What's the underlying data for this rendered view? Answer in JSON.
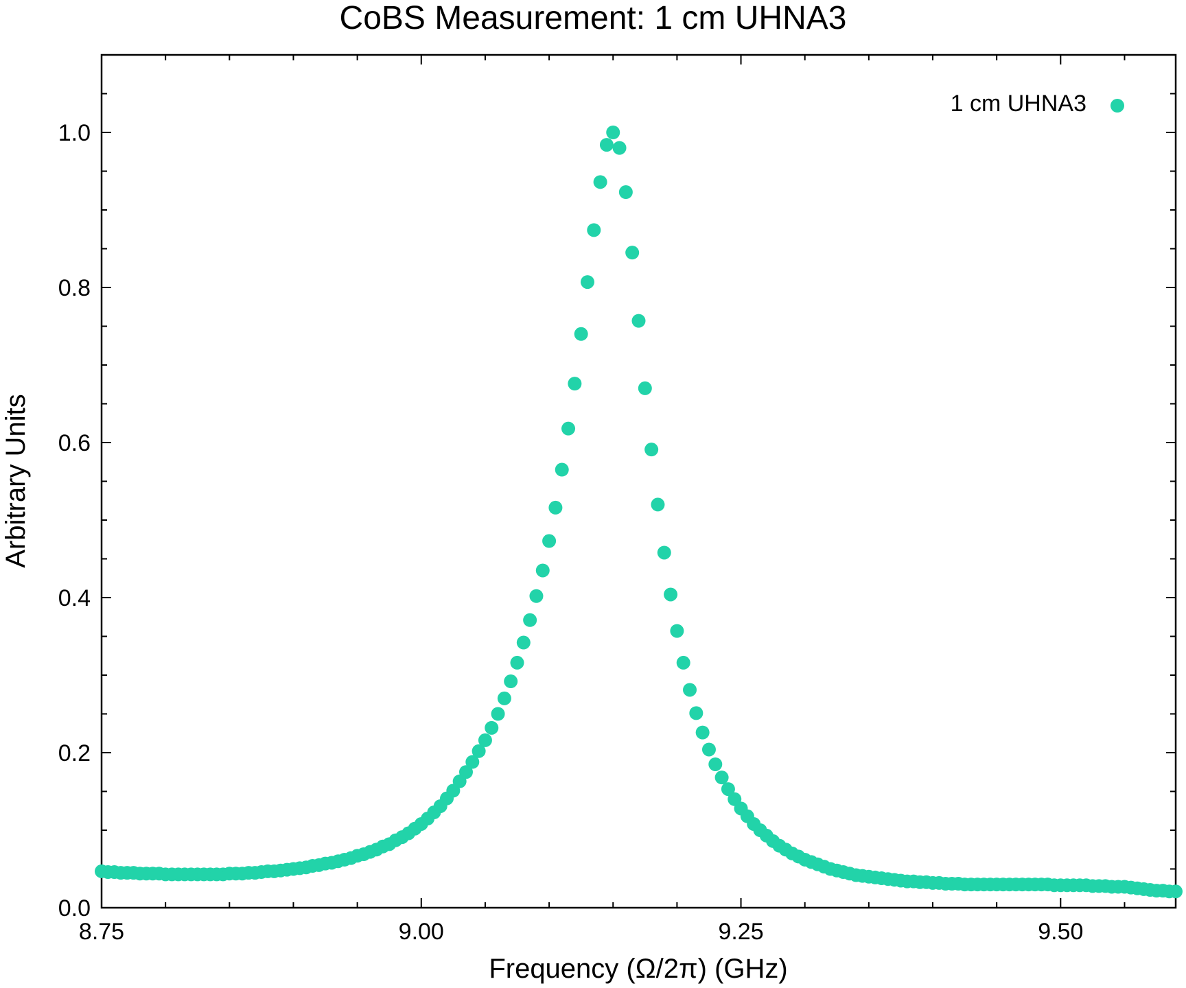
{
  "chart_data": {
    "type": "scatter",
    "title": "CoBS Measurement: 1 cm UHNA3",
    "xlabel": "Frequency (Ω/2π) (GHz)",
    "ylabel": "Arbitrary Units",
    "xlim": [
      8.75,
      9.59
    ],
    "ylim": [
      0.0,
      1.1
    ],
    "x_ticks": [
      "8.75",
      "9.00",
      "9.25",
      "9.50"
    ],
    "y_ticks": [
      "0.0",
      "0.2",
      "0.4",
      "0.6",
      "0.8",
      "1.0"
    ],
    "grid": false,
    "legend_position": "top-right",
    "color": "#22d3a9",
    "series": [
      {
        "name": "1 cm UHNA3",
        "x": [
          8.75,
          8.755,
          8.76,
          8.765,
          8.77,
          8.775,
          8.78,
          8.785,
          8.79,
          8.795,
          8.8,
          8.805,
          8.81,
          8.815,
          8.82,
          8.825,
          8.83,
          8.835,
          8.84,
          8.845,
          8.85,
          8.855,
          8.86,
          8.865,
          8.87,
          8.875,
          8.88,
          8.885,
          8.89,
          8.895,
          8.9,
          8.905,
          8.91,
          8.915,
          8.92,
          8.925,
          8.93,
          8.935,
          8.94,
          8.945,
          8.95,
          8.955,
          8.96,
          8.965,
          8.97,
          8.975,
          8.98,
          8.985,
          8.99,
          8.995,
          9.0,
          9.005,
          9.01,
          9.015,
          9.02,
          9.025,
          9.03,
          9.035,
          9.04,
          9.045,
          9.05,
          9.055,
          9.06,
          9.065,
          9.07,
          9.075,
          9.08,
          9.085,
          9.09,
          9.095,
          9.1,
          9.105,
          9.11,
          9.115,
          9.12,
          9.125,
          9.13,
          9.135,
          9.14,
          9.145,
          9.15,
          9.155,
          9.16,
          9.165,
          9.17,
          9.175,
          9.18,
          9.185,
          9.19,
          9.195,
          9.2,
          9.205,
          9.21,
          9.215,
          9.22,
          9.225,
          9.23,
          9.235,
          9.24,
          9.245,
          9.25,
          9.255,
          9.26,
          9.265,
          9.27,
          9.275,
          9.28,
          9.285,
          9.29,
          9.295,
          9.3,
          9.305,
          9.31,
          9.315,
          9.32,
          9.325,
          9.33,
          9.335,
          9.34,
          9.345,
          9.35,
          9.355,
          9.36,
          9.365,
          9.37,
          9.375,
          9.38,
          9.385,
          9.39,
          9.395,
          9.4,
          9.405,
          9.41,
          9.415,
          9.42,
          9.425,
          9.43,
          9.435,
          9.44,
          9.445,
          9.45,
          9.455,
          9.46,
          9.465,
          9.47,
          9.475,
          9.48,
          9.485,
          9.49,
          9.495,
          9.5,
          9.505,
          9.51,
          9.515,
          9.52,
          9.525,
          9.53,
          9.535,
          9.54,
          9.545,
          9.55,
          9.555,
          9.56,
          9.565,
          9.57,
          9.575,
          9.58,
          9.585,
          9.59
        ],
        "y": [
          0.047,
          0.046,
          0.046,
          0.045,
          0.045,
          0.045,
          0.044,
          0.044,
          0.044,
          0.044,
          0.043,
          0.043,
          0.043,
          0.043,
          0.043,
          0.043,
          0.043,
          0.043,
          0.043,
          0.043,
          0.044,
          0.044,
          0.044,
          0.045,
          0.045,
          0.046,
          0.047,
          0.047,
          0.048,
          0.049,
          0.05,
          0.051,
          0.052,
          0.054,
          0.055,
          0.057,
          0.058,
          0.06,
          0.062,
          0.064,
          0.067,
          0.069,
          0.072,
          0.075,
          0.079,
          0.082,
          0.087,
          0.091,
          0.096,
          0.102,
          0.108,
          0.115,
          0.123,
          0.131,
          0.141,
          0.151,
          0.163,
          0.175,
          0.188,
          0.202,
          0.216,
          0.232,
          0.25,
          0.27,
          0.292,
          0.316,
          0.342,
          0.371,
          0.402,
          0.435,
          0.473,
          0.516,
          0.565,
          0.618,
          0.676,
          0.74,
          0.807,
          0.874,
          0.936,
          0.984,
          1.0,
          0.98,
          0.923,
          0.845,
          0.757,
          0.67,
          0.591,
          0.52,
          0.458,
          0.404,
          0.357,
          0.316,
          0.281,
          0.251,
          0.226,
          0.204,
          0.185,
          0.168,
          0.153,
          0.14,
          0.128,
          0.118,
          0.108,
          0.1,
          0.093,
          0.086,
          0.08,
          0.075,
          0.07,
          0.066,
          0.062,
          0.059,
          0.056,
          0.053,
          0.05,
          0.048,
          0.046,
          0.044,
          0.042,
          0.041,
          0.04,
          0.039,
          0.038,
          0.037,
          0.036,
          0.035,
          0.034,
          0.034,
          0.033,
          0.033,
          0.032,
          0.032,
          0.031,
          0.031,
          0.031,
          0.03,
          0.03,
          0.03,
          0.03,
          0.03,
          0.03,
          0.03,
          0.03,
          0.03,
          0.03,
          0.03,
          0.03,
          0.03,
          0.03,
          0.029,
          0.029,
          0.029,
          0.029,
          0.029,
          0.029,
          0.028,
          0.028,
          0.028,
          0.027,
          0.027,
          0.027,
          0.026,
          0.025,
          0.024,
          0.023,
          0.022,
          0.022,
          0.021,
          0.021
        ]
      }
    ]
  }
}
